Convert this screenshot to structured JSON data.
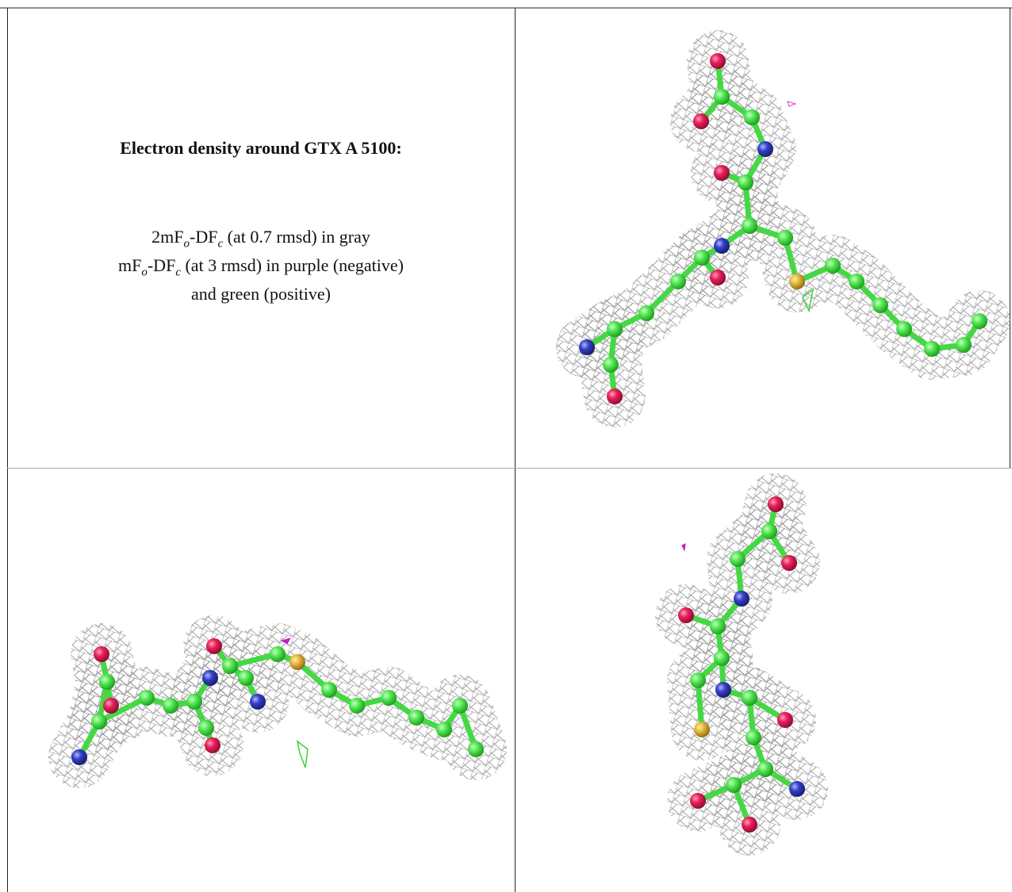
{
  "caption": {
    "title": "Electron density around GTX A 5100:",
    "lines": [
      [
        "2mF",
        "o",
        "-DF",
        "c",
        " (at 0.7 rmsd) in gray"
      ],
      [
        "mF",
        "o",
        "-DF",
        "c",
        " (at 3 rmsd) in purple (negative)"
      ],
      [
        "and green (positive)"
      ]
    ]
  }
}
